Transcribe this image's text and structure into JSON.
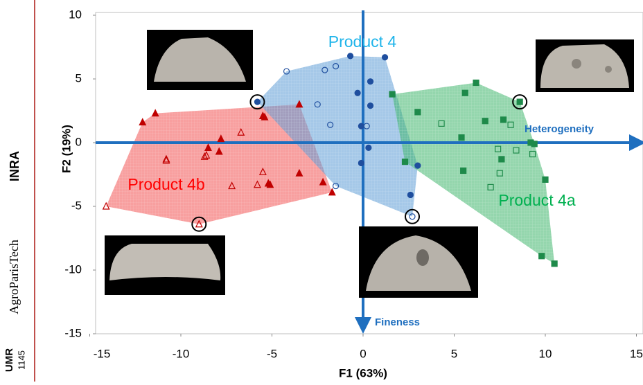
{
  "sidebar": {
    "lab": "UMR",
    "lab_number": "1145",
    "school": "AgroParisTech",
    "institute": "INRA"
  },
  "chart_data": {
    "type": "scatter",
    "xlabel": "F1 (63%)",
    "ylabel": "F2 (19%)",
    "xlim": [
      -15,
      15
    ],
    "ylim": [
      -15,
      10
    ],
    "xticks": [
      -15,
      -10,
      -5,
      0,
      5,
      10,
      15
    ],
    "yticks": [
      -15,
      -10,
      -5,
      0,
      5,
      10
    ],
    "annotations": [
      "Heterogeneity",
      "Fineness"
    ],
    "axis_color": "#1f6fbf",
    "hull": true,
    "series": [
      {
        "name": "Product 4b",
        "color": "#ff0000",
        "marker_color": "#c00000",
        "hull_color": "#f25050",
        "marker": "triangle",
        "x": [
          -12.1,
          -11.4,
          -8.5,
          -7.9,
          -5.5,
          -5.4,
          -3.5,
          -3.5,
          -5.2,
          -5.1,
          -7.8,
          -1.7,
          -2.2,
          -14.1,
          -10.8,
          -10.8,
          -8.7,
          -8.6,
          -6.7,
          -5.5,
          -5.8,
          -7.2,
          -9.0
        ],
        "values": [
          1.6,
          2.3,
          -0.4,
          -0.7,
          2.1,
          2.0,
          3.0,
          -2.4,
          -3.2,
          -3.3,
          0.3,
          -3.9,
          -3.1,
          -5.0,
          -1.3,
          -1.4,
          -1.1,
          -1.0,
          0.8,
          -2.3,
          -3.3,
          -3.4,
          -6.4
        ],
        "open": [
          false,
          false,
          false,
          false,
          false,
          false,
          false,
          false,
          false,
          false,
          false,
          false,
          false,
          true,
          true,
          true,
          true,
          true,
          true,
          true,
          true,
          true,
          true
        ],
        "highlight": [
          22
        ]
      },
      {
        "name": "Product 4",
        "color": "#1eb4ea",
        "marker_color": "#1f4e9e",
        "hull_color": "#5b9bd5",
        "marker": "circle",
        "x": [
          -5.8,
          -0.7,
          1.2,
          -0.3,
          -0.1,
          0.3,
          -0.1,
          0.4,
          3.0,
          2.6,
          0.4,
          -4.2,
          -2.1,
          -1.5,
          -2.5,
          -1.8,
          -1.5,
          0.2,
          2.7
        ],
        "values": [
          3.2,
          6.8,
          6.7,
          3.9,
          1.3,
          -0.4,
          -1.6,
          2.9,
          -1.8,
          -4.1,
          4.8,
          5.6,
          5.7,
          6.0,
          3.0,
          1.4,
          -3.4,
          1.3,
          -5.8
        ],
        "open": [
          false,
          false,
          false,
          false,
          false,
          false,
          false,
          false,
          false,
          false,
          false,
          true,
          true,
          true,
          true,
          true,
          true,
          true,
          true
        ],
        "highlight": [
          0,
          18
        ]
      },
      {
        "name": "Product 4a",
        "color": "#00b050",
        "marker_color": "#1e8a4a",
        "hull_color": "#3cb46a",
        "marker": "square",
        "x": [
          1.6,
          3.0,
          5.6,
          6.2,
          6.7,
          7.7,
          8.6,
          7.6,
          5.5,
          5.4,
          2.3,
          9.4,
          10.0,
          9.8,
          10.5,
          9.2,
          4.3,
          8.1,
          7.4,
          8.4,
          9.3,
          7.0,
          7.5
        ],
        "values": [
          3.8,
          2.4,
          3.9,
          4.7,
          1.7,
          1.8,
          3.2,
          -1.3,
          -2.2,
          0.4,
          -1.5,
          -0.1,
          -2.9,
          -8.9,
          -9.5,
          0.0,
          1.5,
          1.4,
          -0.5,
          -0.6,
          -0.9,
          -3.5,
          -2.4
        ],
        "open": [
          false,
          false,
          false,
          false,
          false,
          false,
          false,
          false,
          false,
          false,
          false,
          false,
          false,
          false,
          false,
          false,
          true,
          true,
          true,
          true,
          true,
          true,
          true
        ],
        "highlight": [
          6
        ]
      }
    ]
  }
}
